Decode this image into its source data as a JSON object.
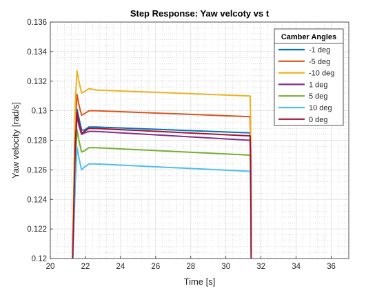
{
  "chart_data": {
    "type": "line",
    "title": "Step Response: Yaw velcoty vs t",
    "xlabel": "Time [s]",
    "ylabel": "Yaw velocity [rad/s]",
    "xlim": [
      20,
      37
    ],
    "ylim": [
      0.12,
      0.136
    ],
    "xticks": [
      "20",
      "22",
      "24",
      "26",
      "28",
      "30",
      "32",
      "34",
      "36"
    ],
    "yticks": [
      "0.12",
      "0.122",
      "0.124",
      "0.126",
      "0.128",
      "0.13",
      "0.132",
      "0.134",
      "0.136"
    ],
    "grid": true,
    "minor_grid": true,
    "legend": {
      "title": "Camber Angles",
      "position": "top-right"
    },
    "series": [
      {
        "name": "-1 deg",
        "color": "#0072BD",
        "points": [
          [
            21.25,
            0.1188
          ],
          [
            21.42,
            0.1276
          ],
          [
            21.52,
            0.1301
          ],
          [
            21.63,
            0.1295
          ],
          [
            21.78,
            0.1287
          ],
          [
            21.95,
            0.1287
          ],
          [
            22.2,
            0.1289
          ],
          [
            22.6,
            0.1289
          ],
          [
            31.38,
            0.1285
          ],
          [
            31.41,
            0.127
          ],
          [
            31.45,
            0.1188
          ]
        ]
      },
      {
        "name": "-5 deg",
        "color": "#D95319",
        "points": [
          [
            21.25,
            0.1188
          ],
          [
            21.42,
            0.129
          ],
          [
            21.52,
            0.1311
          ],
          [
            21.63,
            0.1304
          ],
          [
            21.78,
            0.1297
          ],
          [
            21.95,
            0.1298
          ],
          [
            22.2,
            0.13
          ],
          [
            22.6,
            0.13
          ],
          [
            31.38,
            0.1296
          ],
          [
            31.41,
            0.128
          ],
          [
            31.45,
            0.1188
          ]
        ]
      },
      {
        "name": "-10 deg",
        "color": "#EDB120",
        "points": [
          [
            21.25,
            0.1188
          ],
          [
            21.42,
            0.1305
          ],
          [
            21.52,
            0.1327
          ],
          [
            21.63,
            0.132
          ],
          [
            21.78,
            0.1312
          ],
          [
            21.95,
            0.1313
          ],
          [
            22.2,
            0.1315
          ],
          [
            22.6,
            0.1314
          ],
          [
            31.38,
            0.131
          ],
          [
            31.41,
            0.1295
          ],
          [
            31.45,
            0.1188
          ]
        ]
      },
      {
        "name": "1 deg",
        "color": "#7E2F8E",
        "points": [
          [
            21.25,
            0.1188
          ],
          [
            21.42,
            0.1272
          ],
          [
            21.52,
            0.1297
          ],
          [
            21.63,
            0.129
          ],
          [
            21.78,
            0.1284
          ],
          [
            21.95,
            0.1285
          ],
          [
            22.2,
            0.1286
          ],
          [
            22.6,
            0.1286
          ],
          [
            31.38,
            0.128
          ],
          [
            31.41,
            0.1265
          ],
          [
            31.45,
            0.1188
          ]
        ]
      },
      {
        "name": "5 deg",
        "color": "#77AC30",
        "points": [
          [
            21.25,
            0.1188
          ],
          [
            21.42,
            0.1262
          ],
          [
            21.52,
            0.1287
          ],
          [
            21.63,
            0.128
          ],
          [
            21.78,
            0.1272
          ],
          [
            21.95,
            0.1273
          ],
          [
            22.2,
            0.1275
          ],
          [
            22.6,
            0.1275
          ],
          [
            31.38,
            0.127
          ],
          [
            31.41,
            0.1255
          ],
          [
            31.45,
            0.1188
          ]
        ]
      },
      {
        "name": "10 deg",
        "color": "#4DBEEE",
        "points": [
          [
            21.25,
            0.1188
          ],
          [
            21.42,
            0.125
          ],
          [
            21.52,
            0.1275
          ],
          [
            21.63,
            0.1268
          ],
          [
            21.78,
            0.126
          ],
          [
            21.95,
            0.1262
          ],
          [
            22.2,
            0.1264
          ],
          [
            22.6,
            0.1264
          ],
          [
            31.38,
            0.1259
          ],
          [
            31.41,
            0.1245
          ],
          [
            31.45,
            0.1188
          ]
        ]
      },
      {
        "name": "0 deg",
        "color": "#A2142F",
        "points": [
          [
            21.25,
            0.1188
          ],
          [
            21.42,
            0.1277
          ],
          [
            21.52,
            0.1299
          ],
          [
            21.63,
            0.1292
          ],
          [
            21.78,
            0.1285
          ],
          [
            21.95,
            0.1286
          ],
          [
            22.2,
            0.1288
          ],
          [
            22.6,
            0.1288
          ],
          [
            31.38,
            0.1283
          ],
          [
            31.41,
            0.1268
          ],
          [
            31.45,
            0.1188
          ]
        ]
      }
    ]
  }
}
